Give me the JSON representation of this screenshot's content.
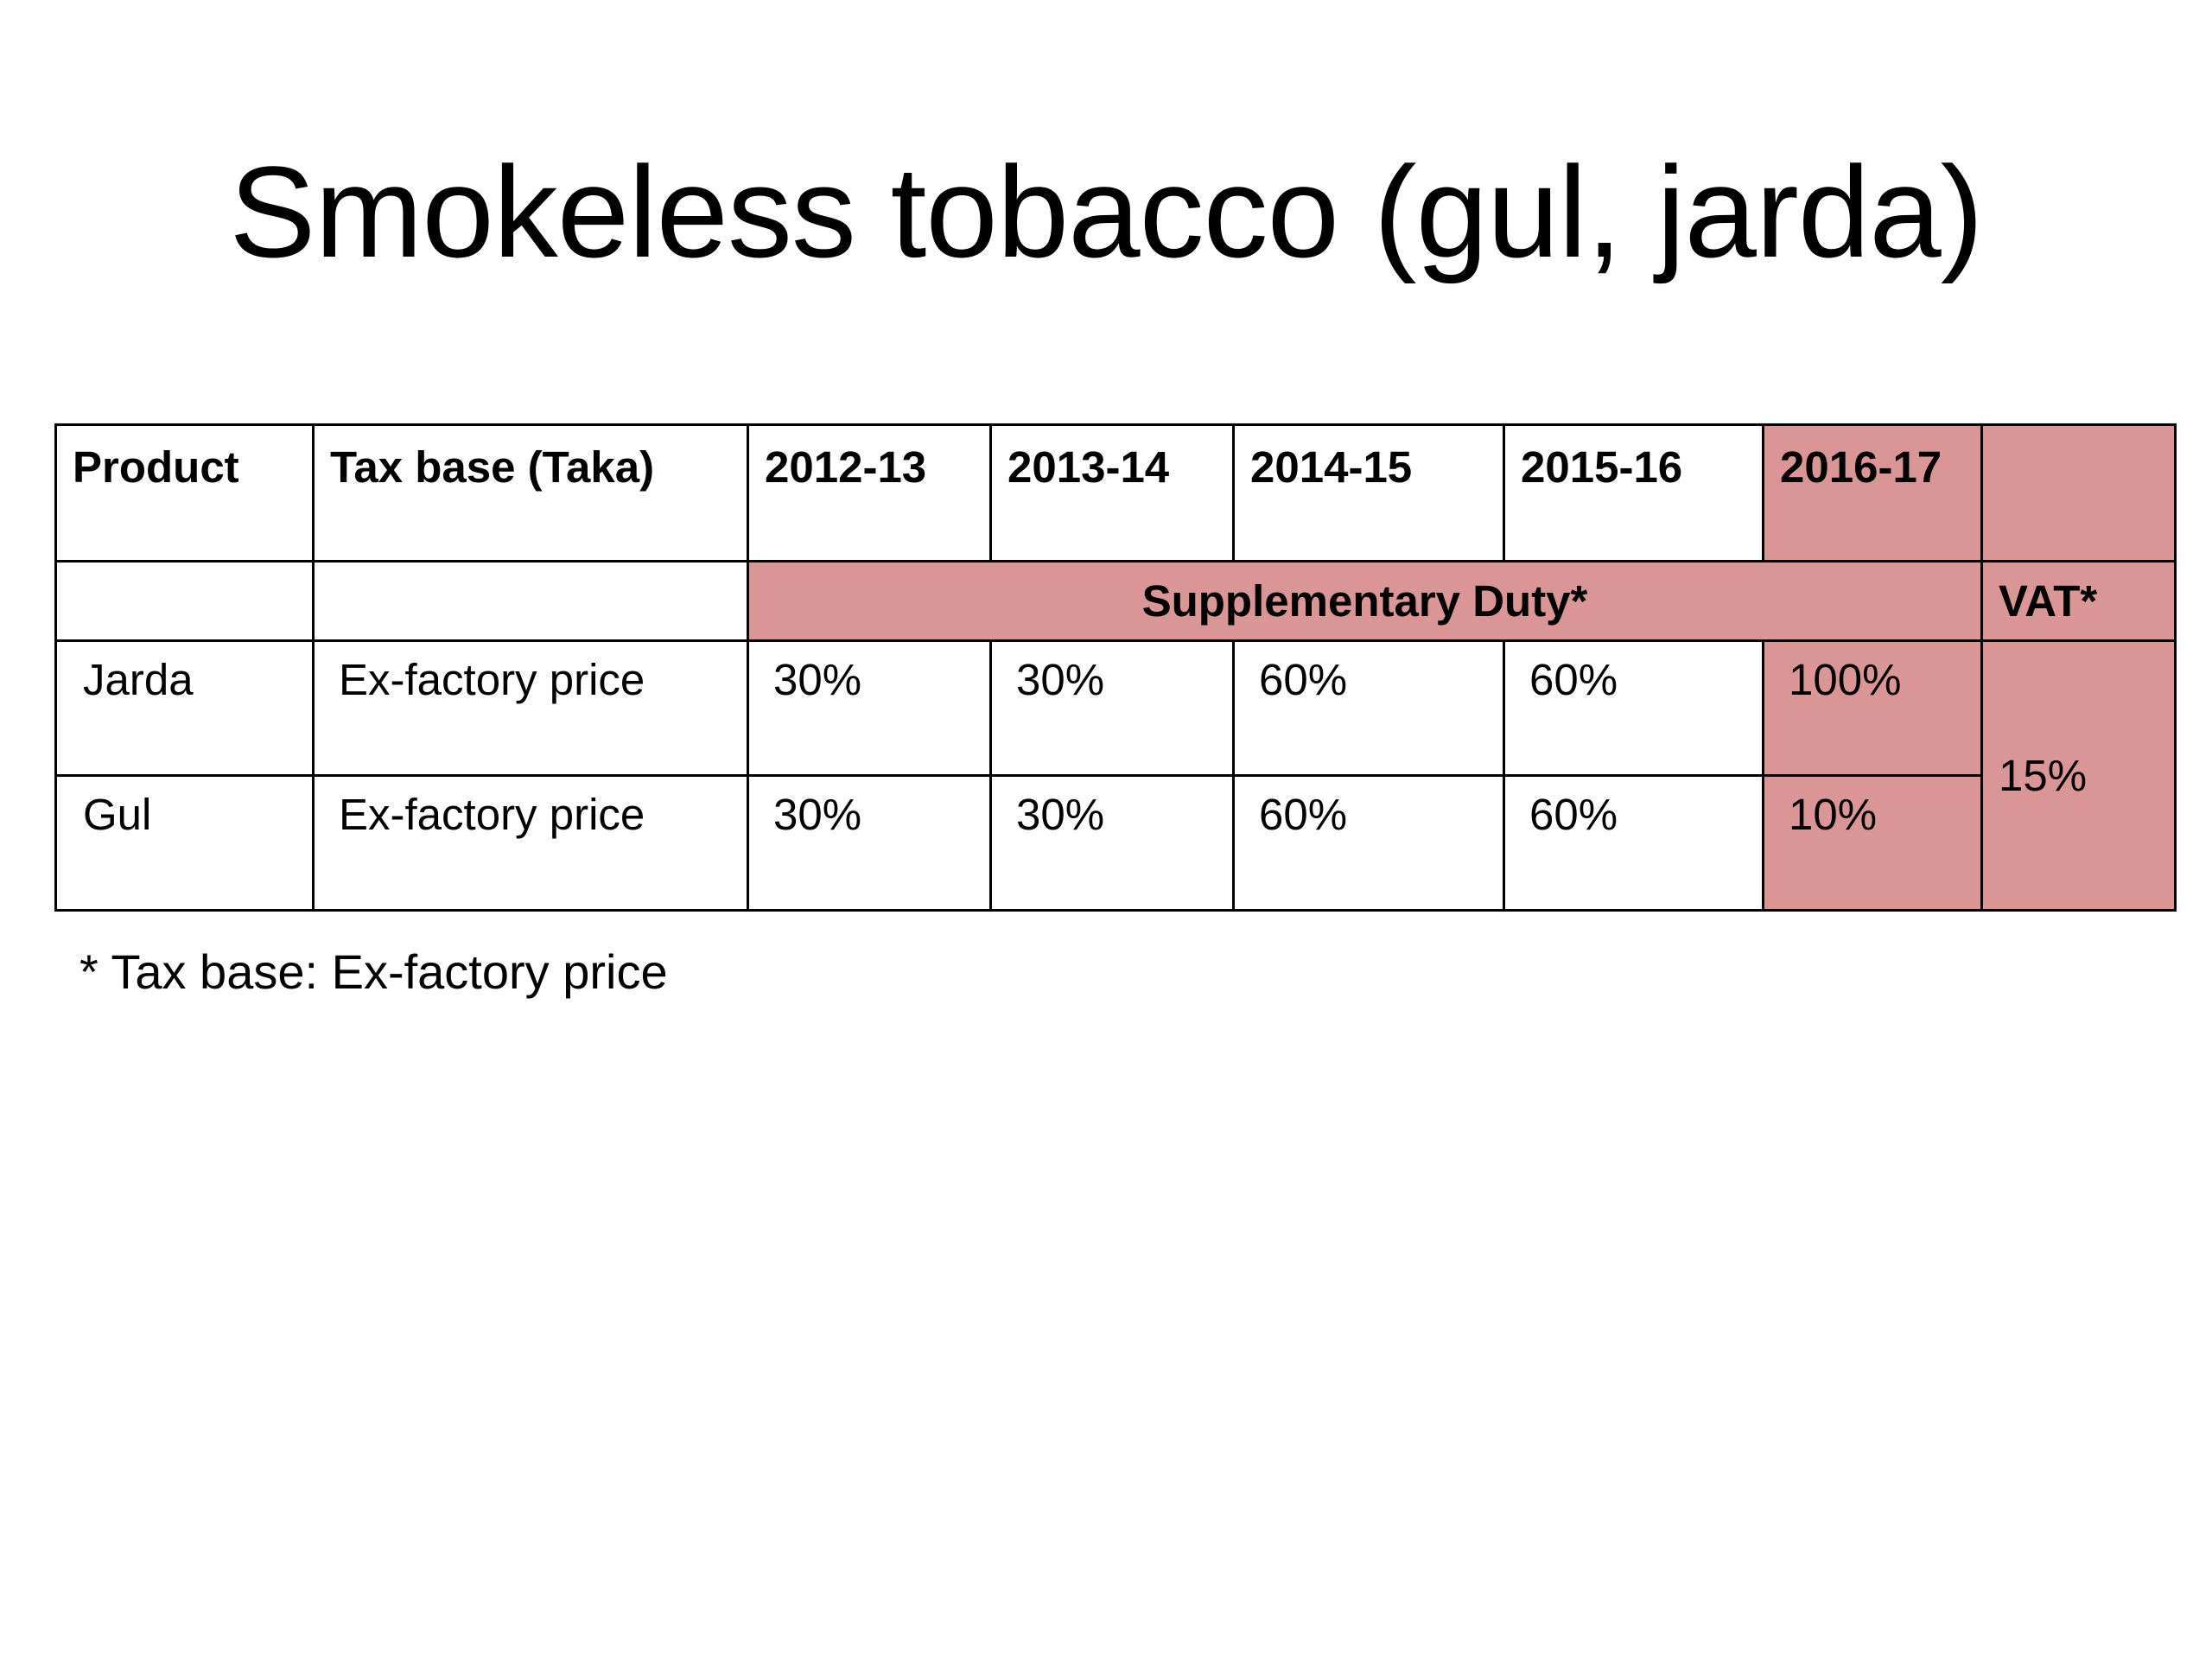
{
  "title": "Smokeless tobacco (gul, jarda)",
  "table": {
    "headers": {
      "product": "Product",
      "tax_base": "Tax base (Taka)",
      "years": [
        "2012-13",
        "2013-14",
        "2014-15",
        "2015-16",
        "2016-17"
      ],
      "last": ""
    },
    "subheader": {
      "supplementary_duty": "Supplementary Duty*",
      "vat": "VAT*"
    },
    "rows": [
      {
        "product": "Jarda",
        "tax_base": "Ex-factory price",
        "values": [
          "30%",
          "30%",
          "60%",
          "60%",
          "100%"
        ]
      },
      {
        "product": "Gul",
        "tax_base": "Ex-factory price",
        "values": [
          "30%",
          "30%",
          "60%",
          "60%",
          "10%"
        ]
      }
    ],
    "vat_value": "15%"
  },
  "footnote": "* Tax base: Ex-factory price",
  "colors": {
    "highlight": "#d99694",
    "border": "#000000",
    "background": "#ffffff"
  }
}
